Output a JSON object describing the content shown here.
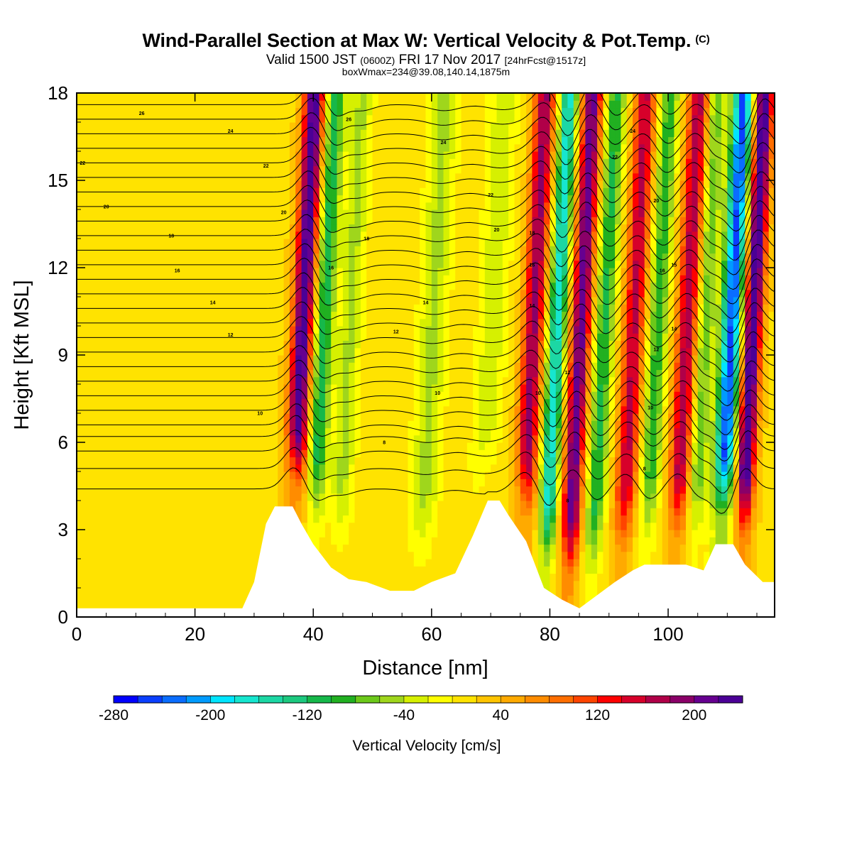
{
  "header": {
    "title": "Wind-Parallel Section at Max W: Vertical Velocity & Pot.Temp.",
    "title_mark": "(C)",
    "valid_main": "Valid 1500 JST",
    "valid_utc": "(0600Z)",
    "valid_date": "FRI 17 Nov 2017",
    "valid_fcst": "[24hrFcst@1517z]",
    "box": "boxWmax=234@39.08,140.14,1875m"
  },
  "chart_data": {
    "type": "heatmap",
    "title": "Wind-Parallel Section at Max W: Vertical Velocity & Pot.Temp.",
    "xlabel": "Distance [nm]",
    "ylabel": "Height [Kft MSL]",
    "xlim": [
      0,
      118
    ],
    "ylim": [
      0,
      18
    ],
    "x_ticks": [
      "0",
      "20",
      "40",
      "60",
      "80",
      "100"
    ],
    "y_ticks": [
      "0",
      "3",
      "6",
      "9",
      "12",
      "15",
      "18"
    ],
    "colorbar": {
      "label": "Vertical Velocity [cm/s]",
      "min": -280,
      "max": 240,
      "step": 20,
      "tick_labels": [
        "-280",
        "-200",
        "-120",
        "-40",
        "40",
        "120",
        "200"
      ],
      "colors": [
        "#0000ff",
        "#0a3fff",
        "#0a6dff",
        "#009bff",
        "#00e5ff",
        "#16e6cf",
        "#1cd7a4",
        "#1cc97f",
        "#16b84a",
        "#21b021",
        "#6cc91a",
        "#9fd61c",
        "#d6f001",
        "#ffff00",
        "#ffe300",
        "#ffc400",
        "#ffaa00",
        "#ff8c00",
        "#ff6e00",
        "#ff4400",
        "#ff0000",
        "#d7002a",
        "#b00048",
        "#8a0068",
        "#660090",
        "#4b0096"
      ]
    },
    "w_bands": [
      {
        "x": 38,
        "amp": 220,
        "width": 1.8,
        "note": "updraft"
      },
      {
        "x": 41.5,
        "amp": -130,
        "width": 1.6
      },
      {
        "x": 46,
        "amp": -60,
        "width": 2.0
      },
      {
        "x": 60,
        "amp": -60,
        "width": 2.5
      },
      {
        "x": 70,
        "amp": -50,
        "width": 2.5
      },
      {
        "x": 77,
        "amp": 170,
        "width": 1.8
      },
      {
        "x": 81,
        "amp": -190,
        "width": 1.5
      },
      {
        "x": 85,
        "amp": 200,
        "width": 1.7
      },
      {
        "x": 89,
        "amp": -120,
        "width": 1.6
      },
      {
        "x": 94,
        "amp": 150,
        "width": 1.8
      },
      {
        "x": 98,
        "amp": -110,
        "width": 1.6
      },
      {
        "x": 103,
        "amp": 160,
        "width": 1.8
      },
      {
        "x": 106,
        "amp": -90,
        "width": 1.5
      },
      {
        "x": 110.5,
        "amp": -260,
        "width": 1.8
      },
      {
        "x": 114,
        "amp": 234,
        "width": 1.6
      }
    ],
    "terrain": [
      [
        0,
        0.3
      ],
      [
        28,
        0.3
      ],
      [
        30,
        1.2
      ],
      [
        32,
        3.2
      ],
      [
        33.5,
        3.8
      ],
      [
        36.5,
        3.8
      ],
      [
        38,
        3.2
      ],
      [
        40,
        2.5
      ],
      [
        43,
        1.7
      ],
      [
        46,
        1.3
      ],
      [
        49,
        1.2
      ],
      [
        53,
        0.9
      ],
      [
        57,
        0.9
      ],
      [
        60,
        1.2
      ],
      [
        64,
        1.5
      ],
      [
        67,
        2.8
      ],
      [
        69.5,
        4.0
      ],
      [
        71.5,
        4.0
      ],
      [
        73,
        3.5
      ],
      [
        76,
        2.6
      ],
      [
        79,
        1.0
      ],
      [
        82,
        0.6
      ],
      [
        85,
        0.3
      ],
      [
        87,
        0.6
      ],
      [
        91,
        1.2
      ],
      [
        94,
        1.6
      ],
      [
        96,
        1.8
      ],
      [
        103,
        1.8
      ],
      [
        106,
        1.6
      ],
      [
        108,
        2.5
      ],
      [
        111,
        2.5
      ],
      [
        113,
        1.8
      ],
      [
        116,
        1.2
      ],
      [
        118,
        1.2
      ]
    ],
    "isentropes": {
      "levels_kft": [
        4.4,
        5.1,
        5.7,
        6.2,
        6.6,
        7.1,
        7.6,
        8.1,
        8.6,
        9.1,
        9.6,
        10.1,
        10.6,
        11.1,
        11.6,
        12.1,
        12.6,
        13.1,
        13.6,
        14.1,
        14.6,
        15.1,
        15.6,
        16.1,
        16.6,
        17.1,
        17.6
      ],
      "labels": [
        {
          "text": "26",
          "x": 11,
          "y": 17.3
        },
        {
          "text": "24",
          "x": 26,
          "y": 16.7
        },
        {
          "text": "22",
          "x": 1,
          "y": 15.6
        },
        {
          "text": "22",
          "x": 32,
          "y": 15.5
        },
        {
          "text": "20",
          "x": 5,
          "y": 14.1
        },
        {
          "text": "20",
          "x": 35,
          "y": 13.9
        },
        {
          "text": "18",
          "x": 16,
          "y": 13.1
        },
        {
          "text": "18",
          "x": 49,
          "y": 13.0
        },
        {
          "text": "16",
          "x": 17,
          "y": 11.9
        },
        {
          "text": "16",
          "x": 43,
          "y": 12.0
        },
        {
          "text": "14",
          "x": 23,
          "y": 10.8
        },
        {
          "text": "14",
          "x": 59,
          "y": 10.8
        },
        {
          "text": "12",
          "x": 26,
          "y": 9.7
        },
        {
          "text": "12",
          "x": 54,
          "y": 9.8
        },
        {
          "text": "10",
          "x": 31,
          "y": 7.0
        },
        {
          "text": "10",
          "x": 61,
          "y": 7.7
        },
        {
          "text": "8",
          "x": 52,
          "y": 6.0
        },
        {
          "text": "26",
          "x": 46,
          "y": 17.1
        },
        {
          "text": "24",
          "x": 62,
          "y": 16.3
        },
        {
          "text": "22",
          "x": 70,
          "y": 14.5
        },
        {
          "text": "20",
          "x": 71,
          "y": 13.3
        },
        {
          "text": "18",
          "x": 77,
          "y": 13.2
        },
        {
          "text": "16",
          "x": 77,
          "y": 12.1
        },
        {
          "text": "14",
          "x": 77,
          "y": 10.7
        },
        {
          "text": "12",
          "x": 83,
          "y": 8.4
        },
        {
          "text": "10",
          "x": 78,
          "y": 7.7
        },
        {
          "text": "8",
          "x": 83,
          "y": 4.0
        },
        {
          "text": "24",
          "x": 94,
          "y": 16.7
        },
        {
          "text": "22",
          "x": 91,
          "y": 15.8
        },
        {
          "text": "20",
          "x": 98,
          "y": 14.3
        },
        {
          "text": "16",
          "x": 99,
          "y": 11.9
        },
        {
          "text": "15",
          "x": 101,
          "y": 12.1
        },
        {
          "text": "14",
          "x": 101,
          "y": 9.9
        },
        {
          "text": "12",
          "x": 98,
          "y": 9.2
        },
        {
          "text": "10",
          "x": 97,
          "y": 7.2
        },
        {
          "text": "8",
          "x": 96,
          "y": 5.1
        }
      ]
    }
  }
}
